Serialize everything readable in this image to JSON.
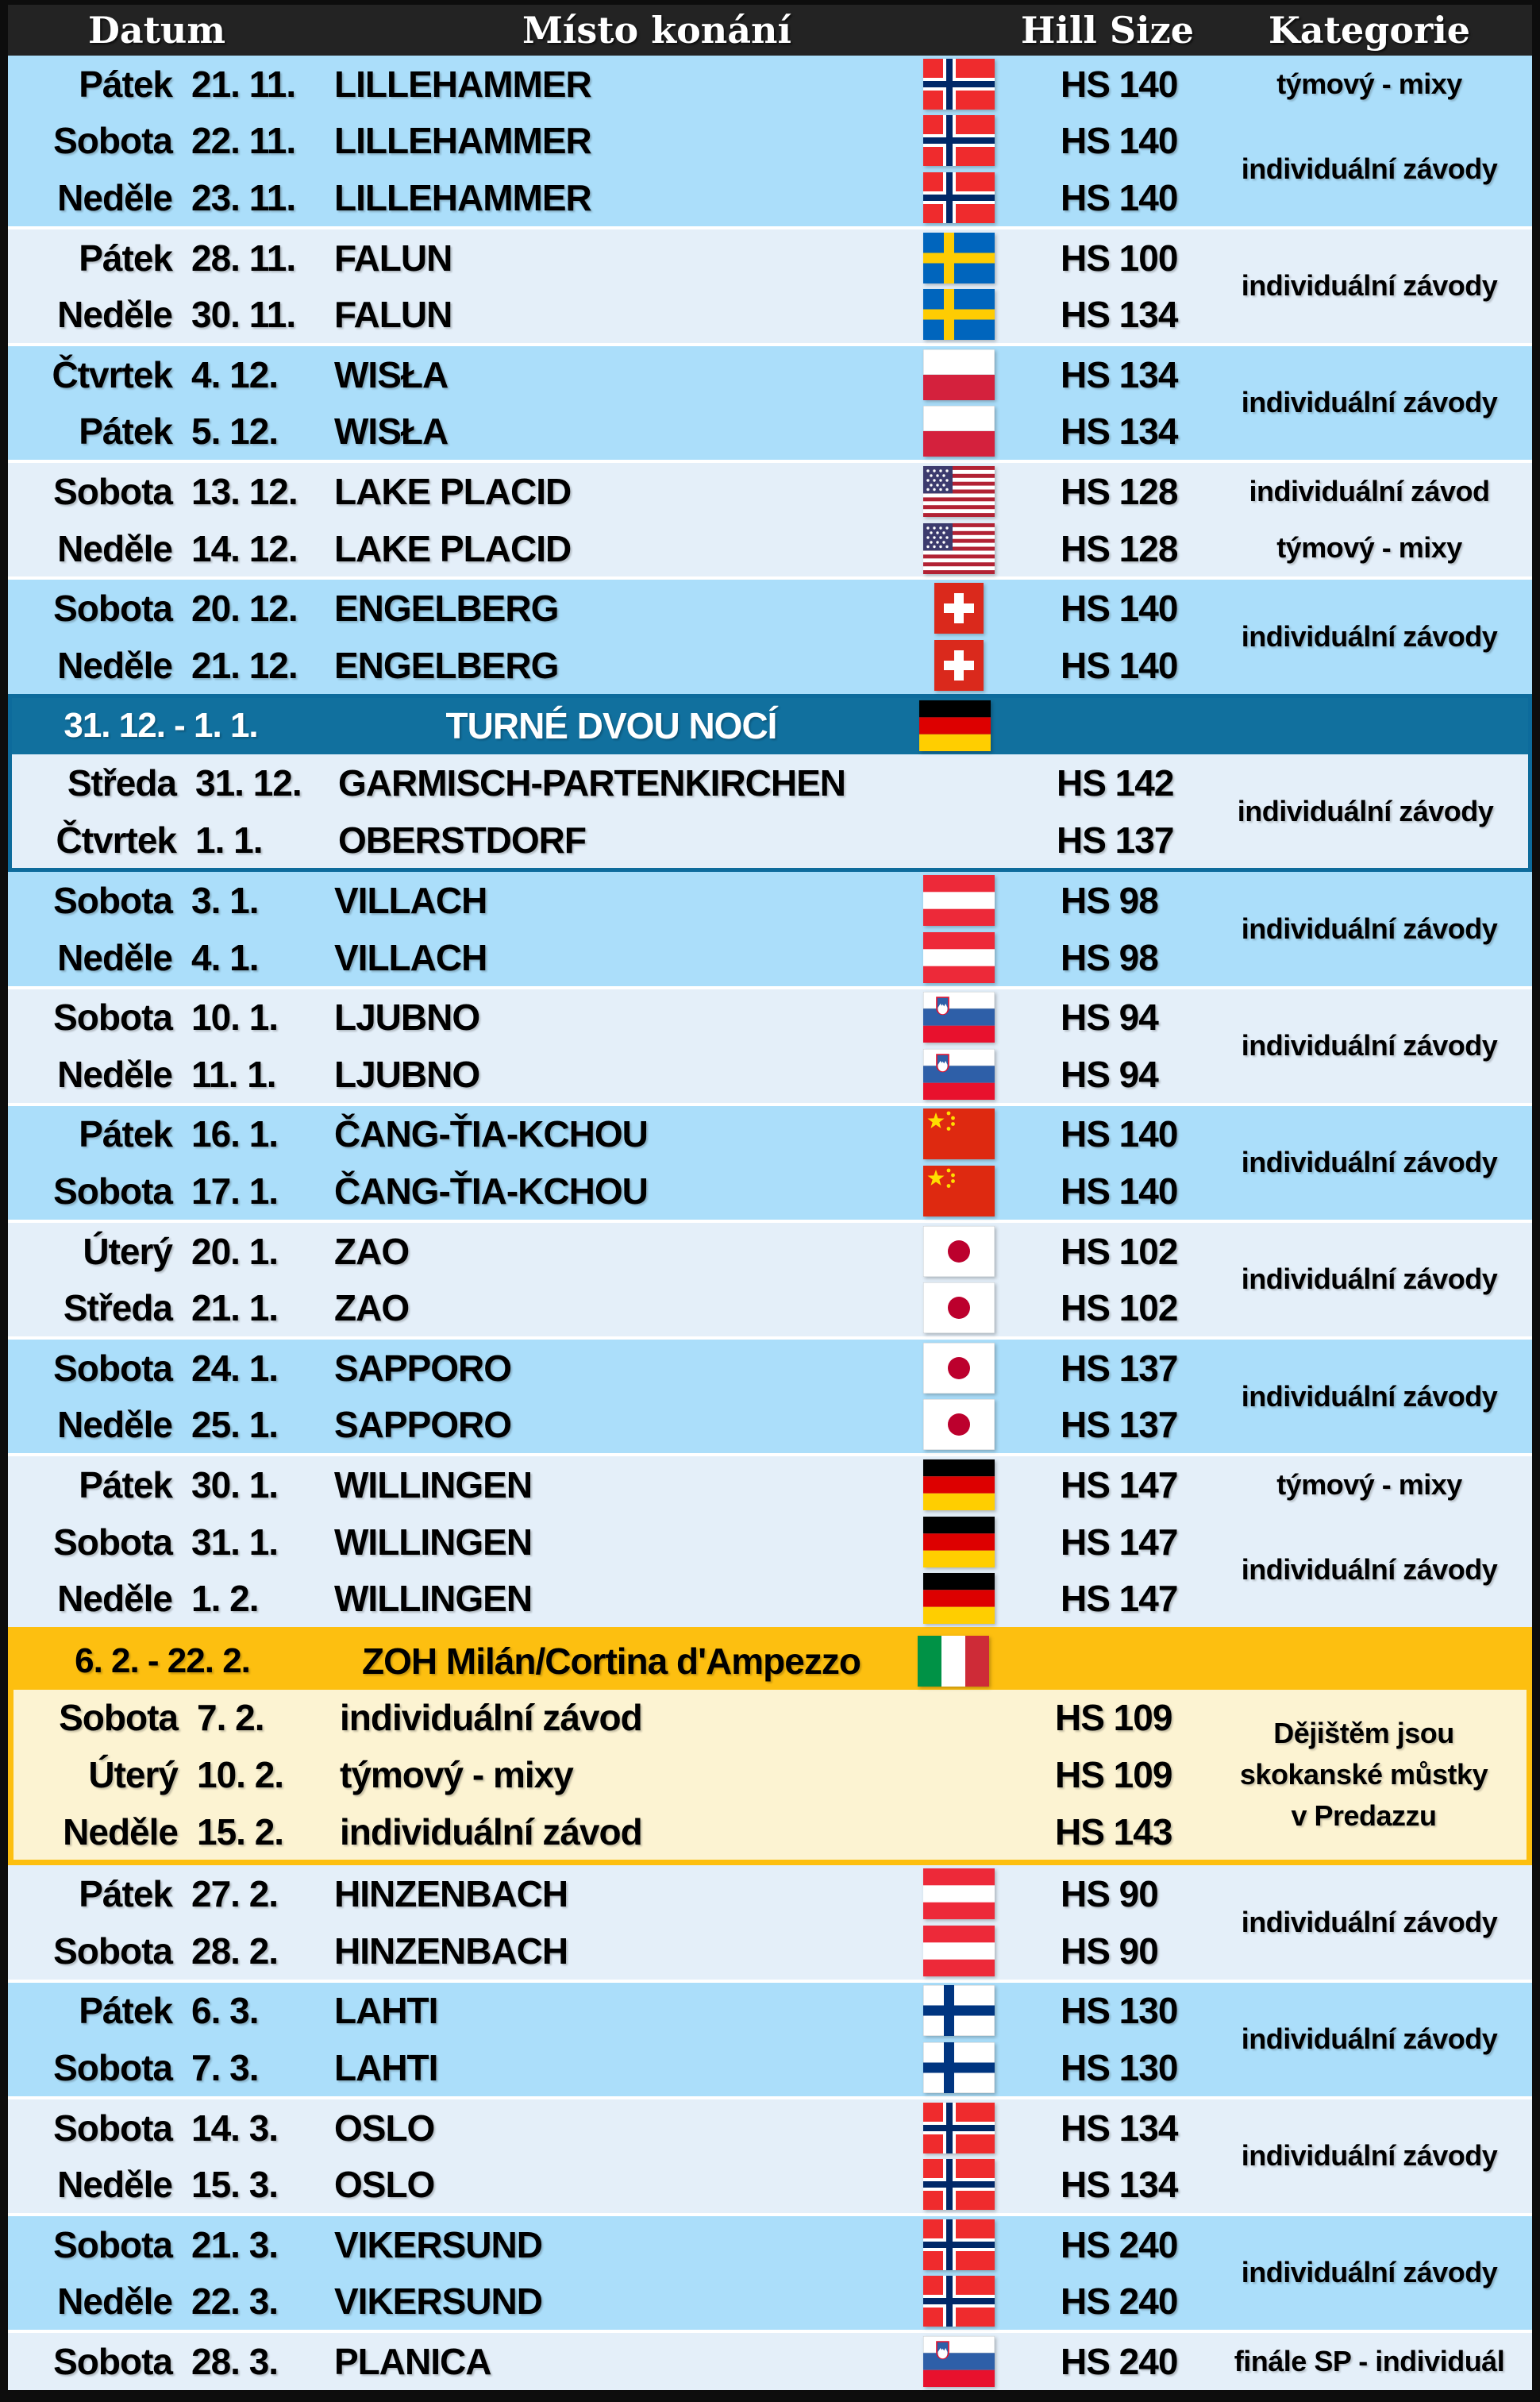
{
  "colors": {
    "header_bg": "#232323",
    "header_text": "#ffffff",
    "row_blue": "#abdefa",
    "row_light": "#e4eff9",
    "tour_blue": "#11709e",
    "tour_border": "#0d6b9c",
    "olympic_orange": "#fdbf10",
    "olympic_cream": "#fcf3d2",
    "separator": "#ffffff",
    "text": "#000000"
  },
  "header": {
    "columns": [
      "Datum",
      "Místo konání",
      "Hill Size",
      "Kategorie"
    ]
  },
  "sections": [
    {
      "kind": "block",
      "bg": "blue",
      "rows": [
        {
          "day": "Pátek",
          "date": "21. 11.",
          "venue": "LILLEHAMMER",
          "flag": "norway",
          "hs": "HS 140"
        },
        {
          "day": "Sobota",
          "date": "22. 11.",
          "venue": "LILLEHAMMER",
          "flag": "norway",
          "hs": "HS 140"
        },
        {
          "day": "Neděle",
          "date": "23. 11.",
          "venue": "LILLEHAMMER",
          "flag": "norway",
          "hs": "HS 140"
        }
      ],
      "cats": [
        {
          "text": "týmový - mixy",
          "start": 0,
          "span": 1
        },
        {
          "text": "individuální závody",
          "start": 1,
          "span": 2
        }
      ]
    },
    {
      "kind": "block",
      "bg": "light",
      "rows": [
        {
          "day": "Pátek",
          "date": "28. 11.",
          "venue": "FALUN",
          "flag": "sweden",
          "hs": "HS 100"
        },
        {
          "day": "Neděle",
          "date": "30. 11.",
          "venue": "FALUN",
          "flag": "sweden",
          "hs": "HS 134"
        }
      ],
      "cats": [
        {
          "text": "individuální závody",
          "start": 0,
          "span": 2
        }
      ]
    },
    {
      "kind": "block",
      "bg": "blue",
      "rows": [
        {
          "day": "Čtvrtek",
          "date": "4. 12.",
          "venue": "WISŁA",
          "flag": "poland",
          "hs": "HS 134"
        },
        {
          "day": "Pátek",
          "date": "5. 12.",
          "venue": "WISŁA",
          "flag": "poland",
          "hs": "HS 134"
        }
      ],
      "cats": [
        {
          "text": "individuální závody",
          "start": 0,
          "span": 2
        }
      ]
    },
    {
      "kind": "block",
      "bg": "light",
      "rows": [
        {
          "day": "Sobota",
          "date": "13. 12.",
          "venue": "LAKE PLACID",
          "flag": "usa",
          "hs": "HS 128"
        },
        {
          "day": "Neděle",
          "date": "14. 12.",
          "venue": "LAKE PLACID",
          "flag": "usa",
          "hs": "HS 128"
        }
      ],
      "cats": [
        {
          "text": "individuální závod",
          "start": 0,
          "span": 1
        },
        {
          "text": "týmový - mixy",
          "start": 1,
          "span": 1
        }
      ]
    },
    {
      "kind": "block",
      "bg": "blue",
      "rows": [
        {
          "day": "Sobota",
          "date": "20. 12.",
          "venue": "ENGELBERG",
          "flag": "switzerland",
          "hs": "HS 140"
        },
        {
          "day": "Neděle",
          "date": "21. 12.",
          "venue": "ENGELBERG",
          "flag": "switzerland",
          "hs": "HS 140"
        }
      ],
      "cats": [
        {
          "text": "individuální závody",
          "start": 0,
          "span": 2
        }
      ]
    },
    {
      "kind": "tour",
      "style": "tour",
      "header": {
        "date": "31. 12. - 1. 1.",
        "title": "TURNÉ DVOU NOCÍ",
        "flag": "germany"
      },
      "block": {
        "bg": "light",
        "rows": [
          {
            "day": "Středa",
            "date": "31. 12.",
            "venue": "GARMISCH-PARTENKIRCHEN",
            "flag": null,
            "hs": "HS 142"
          },
          {
            "day": "Čtvrtek",
            "date": "1. 1.",
            "venue": "OBERSTDORF",
            "flag": null,
            "hs": "HS 137"
          }
        ],
        "cats": [
          {
            "text": "individuální závody",
            "start": 0,
            "span": 2
          }
        ]
      }
    },
    {
      "kind": "block",
      "bg": "blue",
      "rows": [
        {
          "day": "Sobota",
          "date": "3. 1.",
          "venue": "VILLACH",
          "flag": "austria",
          "hs": "HS 98"
        },
        {
          "day": "Neděle",
          "date": "4. 1.",
          "venue": "VILLACH",
          "flag": "austria",
          "hs": "HS 98"
        }
      ],
      "cats": [
        {
          "text": "individuální závody",
          "start": 0,
          "span": 2
        }
      ]
    },
    {
      "kind": "block",
      "bg": "light",
      "rows": [
        {
          "day": "Sobota",
          "date": "10. 1.",
          "venue": "LJUBNO",
          "flag": "slovenia",
          "hs": "HS 94"
        },
        {
          "day": "Neděle",
          "date": "11. 1.",
          "venue": "LJUBNO",
          "flag": "slovenia",
          "hs": "HS 94"
        }
      ],
      "cats": [
        {
          "text": "individuální závody",
          "start": 0,
          "span": 2
        }
      ]
    },
    {
      "kind": "block",
      "bg": "blue",
      "rows": [
        {
          "day": "Pátek",
          "date": "16. 1.",
          "venue": "ČANG-ŤIA-KCHOU",
          "flag": "china",
          "hs": "HS 140"
        },
        {
          "day": "Sobota",
          "date": "17. 1.",
          "venue": "ČANG-ŤIA-KCHOU",
          "flag": "china",
          "hs": "HS 140"
        }
      ],
      "cats": [
        {
          "text": "individuální závody",
          "start": 0,
          "span": 2
        }
      ]
    },
    {
      "kind": "block",
      "bg": "light",
      "rows": [
        {
          "day": "Úterý",
          "date": "20. 1.",
          "venue": "ZAO",
          "flag": "japan",
          "hs": "HS 102"
        },
        {
          "day": "Středa",
          "date": "21. 1.",
          "venue": "ZAO",
          "flag": "japan",
          "hs": "HS 102"
        }
      ],
      "cats": [
        {
          "text": "individuální závody",
          "start": 0,
          "span": 2
        }
      ]
    },
    {
      "kind": "block",
      "bg": "blue",
      "rows": [
        {
          "day": "Sobota",
          "date": "24. 1.",
          "venue": "SAPPORO",
          "flag": "japan",
          "hs": "HS 137"
        },
        {
          "day": "Neděle",
          "date": "25. 1.",
          "venue": "SAPPORO",
          "flag": "japan",
          "hs": "HS 137"
        }
      ],
      "cats": [
        {
          "text": "individuální závody",
          "start": 0,
          "span": 2
        }
      ]
    },
    {
      "kind": "block",
      "bg": "light",
      "rows": [
        {
          "day": "Pátek",
          "date": "30. 1.",
          "venue": "WILLINGEN",
          "flag": "germany",
          "hs": "HS 147"
        },
        {
          "day": "Sobota",
          "date": "31. 1.",
          "venue": "WILLINGEN",
          "flag": "germany",
          "hs": "HS 147"
        },
        {
          "day": "Neděle",
          "date": "1. 2.",
          "venue": "WILLINGEN",
          "flag": "germany",
          "hs": "HS 147"
        }
      ],
      "cats": [
        {
          "text": "týmový - mixy",
          "start": 0,
          "span": 1
        },
        {
          "text": "individuální závody",
          "start": 1,
          "span": 2
        }
      ]
    },
    {
      "kind": "tour",
      "style": "olympic",
      "header": {
        "date": "6. 2. - 22. 2.",
        "title": "ZOH Milán/Cortina d'Ampezzo",
        "flag": "italy"
      },
      "block": {
        "bg": "cream",
        "rows": [
          {
            "day": "Sobota",
            "date": "7. 2.",
            "venue": "individuální závod",
            "flag": null,
            "hs": "HS 109"
          },
          {
            "day": "Úterý",
            "date": "10. 2.",
            "venue": "týmový - mixy",
            "flag": null,
            "hs": "HS 109"
          },
          {
            "day": "Neděle",
            "date": "15. 2.",
            "venue": "individuální závod",
            "flag": null,
            "hs": "HS 143"
          }
        ],
        "cats": [
          {
            "lines": [
              "Dějištěm jsou",
              "skokanské můstky",
              "v Predazzu"
            ],
            "start": 0,
            "span": 3
          }
        ]
      }
    },
    {
      "kind": "block",
      "bg": "light",
      "rows": [
        {
          "day": "Pátek",
          "date": "27. 2.",
          "venue": "HINZENBACH",
          "flag": "austria",
          "hs": "HS 90"
        },
        {
          "day": "Sobota",
          "date": "28. 2.",
          "venue": "HINZENBACH",
          "flag": "austria",
          "hs": "HS 90"
        }
      ],
      "cats": [
        {
          "text": "individuální závody",
          "start": 0,
          "span": 2
        }
      ]
    },
    {
      "kind": "block",
      "bg": "blue",
      "rows": [
        {
          "day": "Pátek",
          "date": "6. 3.",
          "venue": "LAHTI",
          "flag": "finland",
          "hs": "HS 130"
        },
        {
          "day": "Sobota",
          "date": "7. 3.",
          "venue": "LAHTI",
          "flag": "finland",
          "hs": "HS 130"
        }
      ],
      "cats": [
        {
          "text": "individuální závody",
          "start": 0,
          "span": 2
        }
      ]
    },
    {
      "kind": "block",
      "bg": "light",
      "rows": [
        {
          "day": "Sobota",
          "date": "14. 3.",
          "venue": "OSLO",
          "flag": "norway",
          "hs": "HS 134"
        },
        {
          "day": "Neděle",
          "date": "15. 3.",
          "venue": "OSLO",
          "flag": "norway",
          "hs": "HS 134"
        }
      ],
      "cats": [
        {
          "text": "individuální závody",
          "start": 0,
          "span": 2
        }
      ]
    },
    {
      "kind": "block",
      "bg": "blue",
      "rows": [
        {
          "day": "Sobota",
          "date": "21. 3.",
          "venue": "VIKERSUND",
          "flag": "norway",
          "hs": "HS 240"
        },
        {
          "day": "Neděle",
          "date": "22. 3.",
          "venue": "VIKERSUND",
          "flag": "norway",
          "hs": "HS 240"
        }
      ],
      "cats": [
        {
          "text": "individuální závody",
          "start": 0,
          "span": 2
        }
      ]
    },
    {
      "kind": "block",
      "bg": "light",
      "rows": [
        {
          "day": "Sobota",
          "date": "28. 3.",
          "venue": "PLANICA",
          "flag": "slovenia",
          "hs": "HS 240"
        }
      ],
      "cats": [
        {
          "text": "finále SP - individuál",
          "start": 0,
          "span": 1
        }
      ]
    }
  ]
}
